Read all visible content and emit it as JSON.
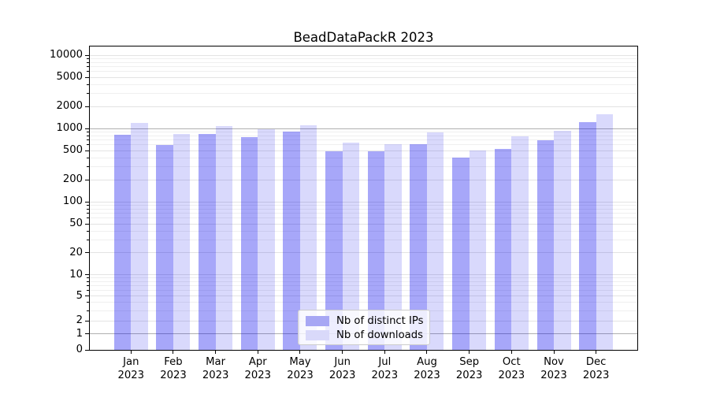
{
  "figure": {
    "title": "BeadDataPackR 2023"
  },
  "chart_data": {
    "type": "bar",
    "title": "BeadDataPackR 2023",
    "categories": [
      "Jan 2023",
      "Feb 2023",
      "Mar 2023",
      "Apr 2023",
      "May 2023",
      "Jun 2023",
      "Jul 2023",
      "Aug 2023",
      "Sep 2023",
      "Oct 2023",
      "Nov 2023",
      "Dec 2023"
    ],
    "series": [
      {
        "name": "Nb of distinct IPs",
        "color_hex": "#a7a7f4",
        "color_rgba": "rgba(0,0,238,0.345)",
        "values": [
          825,
          600,
          840,
          760,
          910,
          490,
          490,
          615,
          400,
          520,
          690,
          1230
        ]
      },
      {
        "name": "Nb of downloads",
        "color_hex": "#d9d9fa",
        "color_rgba": "rgba(0,0,238,0.15)",
        "values": [
          1200,
          850,
          1080,
          975,
          1100,
          640,
          610,
          880,
          500,
          790,
          930,
          1560
        ]
      }
    ],
    "xlabel": "",
    "ylabel": "",
    "yscale": "asinh",
    "ylim": [
      0,
      13000
    ],
    "yticks": [
      0,
      1,
      2,
      5,
      10,
      20,
      50,
      100,
      200,
      500,
      1000,
      2000,
      5000,
      10000
    ],
    "grid": true,
    "major_grid_values": [
      1,
      1000
    ],
    "minor_grid_mantissas": [
      3,
      4,
      6,
      7,
      8,
      9
    ],
    "legend_position": "lower center"
  },
  "colors": {
    "axis": "#000000",
    "grid_major": "#b0b0b0",
    "grid_labeled": "#e3e3e3",
    "grid_minor": "#efefef",
    "legend_border": "#cccccc"
  }
}
